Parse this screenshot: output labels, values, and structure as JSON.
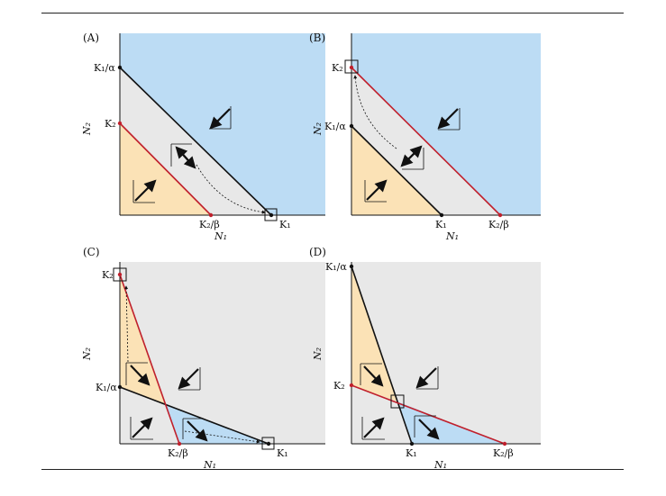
{
  "colors": {
    "blue": "#bcdcf4",
    "gray": "#e8e8e8",
    "orange": "#fbe2b6",
    "red": "#c0202c",
    "black": "#111111"
  },
  "panels": {
    "A": {
      "label": "(A)",
      "y_top": "K₁/α",
      "y_mid": "K₂",
      "x_mid": "K₂/β",
      "x_right": "K₁",
      "x_axis": "N₁",
      "y_axis": "N₂"
    },
    "B": {
      "label": "(B)",
      "y_top": "K₂",
      "y_mid": "K₁/α",
      "x_mid": "K₁",
      "x_right": "K₂/β",
      "x_axis": "N₁",
      "y_axis": "N₂"
    },
    "C": {
      "label": "(C)",
      "y_top": "K₂",
      "y_mid": "K₁/α",
      "x_mid": "K₂/β",
      "x_right": "K₁",
      "x_axis": "N₁",
      "y_axis": "N₂"
    },
    "D": {
      "label": "(D)",
      "y_top": "K₁/α",
      "y_mid": "K₂",
      "x_mid": "K₁",
      "x_right": "K₂/β",
      "x_axis": "N₁",
      "y_axis": "N₂"
    }
  }
}
